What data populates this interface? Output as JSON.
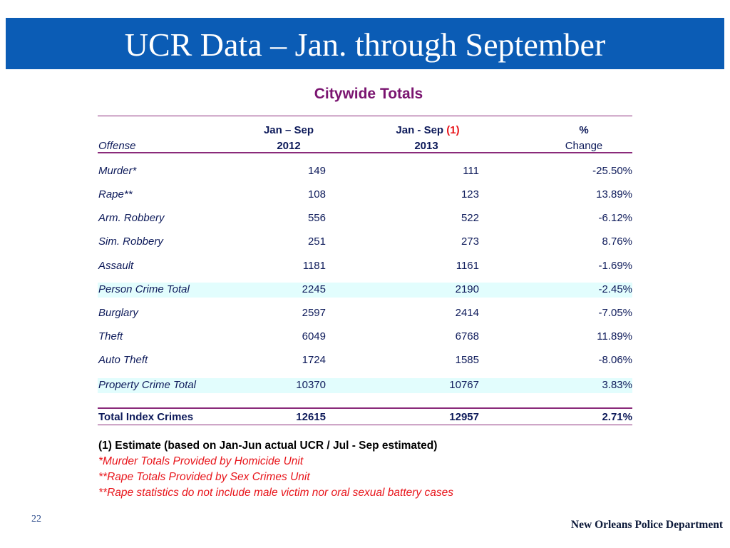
{
  "header": {
    "title": "UCR Data – Jan. through September"
  },
  "subtitle": "Citywide Totals",
  "table": {
    "columns": [
      {
        "line2": "Offense"
      },
      {
        "line1": "Jan – Sep",
        "line2": "2012"
      },
      {
        "line1": "Jan - Sep ",
        "note": "(1)",
        "line2": "2013"
      },
      {
        "line1": "%",
        "line2": "Change"
      }
    ],
    "rows": [
      [
        "Murder*",
        149,
        111,
        "-25.50%"
      ],
      [
        "Rape**",
        108,
        123,
        "13.89%"
      ],
      [
        "Arm. Robbery",
        556,
        522,
        "-6.12%"
      ],
      [
        "Sim. Robbery",
        251,
        273,
        "8.76%"
      ],
      [
        "Assault",
        1181,
        1161,
        "-1.69%"
      ],
      [
        "Person Crime Total",
        2245,
        2190,
        "-2.45%"
      ],
      [
        "Burglary",
        2597,
        2414,
        "-7.05%"
      ],
      [
        "Theft",
        6049,
        6768,
        "11.89%"
      ],
      [
        "Auto Theft",
        1724,
        1585,
        "-8.06%"
      ],
      [
        "Property Crime Total",
        10370,
        10767,
        "3.83%"
      ]
    ],
    "total": [
      "Total Index Crimes",
      12615,
      12957,
      "2.71%"
    ]
  },
  "footnotes": [
    "(1) Estimate (based on Jan-Jun actual UCR / Jul - Sep estimated)",
    "*Murder Totals Provided by Homicide Unit",
    "**Rape Totals Provided by Sex Crimes Unit",
    "**Rape statistics do not include male victim nor oral sexual battery cases"
  ],
  "footer": {
    "page": "22",
    "organization": "New Orleans Police Department"
  }
}
